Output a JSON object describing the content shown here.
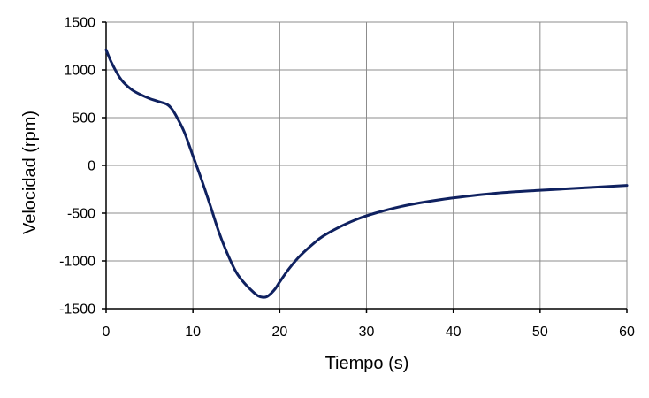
{
  "chart_data": {
    "type": "line",
    "xlabel": "Tiempo (s)",
    "ylabel": "Velocidad (rpm)",
    "xlim": [
      0,
      60
    ],
    "ylim": [
      -1500,
      1500
    ],
    "x_ticks": [
      0,
      10,
      20,
      30,
      40,
      50,
      60
    ],
    "y_ticks": [
      1500,
      1000,
      500,
      0,
      -500,
      -1000,
      -1500
    ],
    "x_tick_labels": [
      "0",
      "10",
      "20",
      "30",
      "40",
      "50",
      "60"
    ],
    "y_tick_labels": [
      "1500",
      "1000",
      "500",
      "0",
      "-500",
      "-1000",
      "-1500"
    ],
    "grid": true,
    "legend": "none",
    "series": [
      {
        "color": "#0f2160",
        "x": [
          0,
          0.5,
          1,
          1.5,
          2,
          3,
          4,
          5,
          6,
          7,
          7.5,
          8,
          9,
          10,
          11,
          12,
          13,
          14,
          15,
          16,
          17,
          17.5,
          18,
          18.5,
          19,
          19.5,
          20,
          21,
          22,
          23,
          24,
          25,
          27,
          29,
          31,
          34,
          37,
          40,
          45,
          50,
          55,
          60
        ],
        "y": [
          1210,
          1100,
          1010,
          930,
          870,
          790,
          740,
          700,
          670,
          640,
          600,
          530,
          350,
          100,
          -150,
          -420,
          -700,
          -930,
          -1120,
          -1240,
          -1330,
          -1365,
          -1380,
          -1375,
          -1340,
          -1290,
          -1220,
          -1090,
          -980,
          -890,
          -810,
          -740,
          -640,
          -560,
          -500,
          -430,
          -380,
          -340,
          -290,
          -260,
          -235,
          -210
        ]
      }
    ]
  }
}
